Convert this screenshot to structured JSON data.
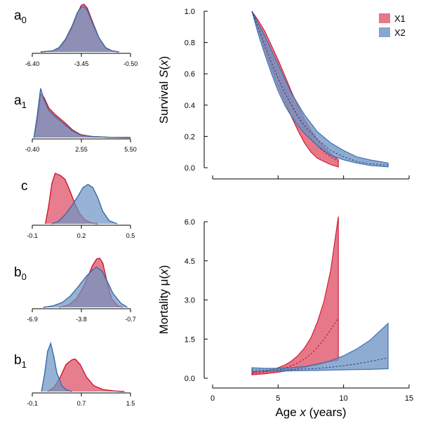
{
  "colors": {
    "x1_fill": "#e05a6e",
    "x1_line": "#d0142e",
    "x2_fill": "#6e94c4",
    "x2_line": "#3a6aa8"
  },
  "chart_data": [
    {
      "type": "area",
      "param": "a",
      "sub": "0",
      "xticks": [
        -6.4,
        -3.45,
        -0.5
      ],
      "xtick_labels": [
        "-6.40",
        "-3.45",
        "-0.50"
      ],
      "series": [
        {
          "name": "X1",
          "density": [
            [
              -5.9,
              0
            ],
            [
              -5.2,
              0.02
            ],
            [
              -4.8,
              0.08
            ],
            [
              -4.4,
              0.25
            ],
            [
              -4.0,
              0.52
            ],
            [
              -3.7,
              0.8
            ],
            [
              -3.45,
              0.98
            ],
            [
              -3.3,
              1.0
            ],
            [
              -3.1,
              0.92
            ],
            [
              -2.8,
              0.65
            ],
            [
              -2.4,
              0.3
            ],
            [
              -2.0,
              0.09
            ],
            [
              -1.6,
              0.02
            ],
            [
              -1.2,
              0
            ]
          ]
        },
        {
          "name": "X2",
          "density": [
            [
              -5.9,
              0
            ],
            [
              -5.2,
              0.02
            ],
            [
              -4.8,
              0.09
            ],
            [
              -4.4,
              0.27
            ],
            [
              -4.0,
              0.55
            ],
            [
              -3.7,
              0.82
            ],
            [
              -3.45,
              0.94
            ],
            [
              -3.3,
              0.95
            ],
            [
              -3.1,
              0.88
            ],
            [
              -2.8,
              0.62
            ],
            [
              -2.4,
              0.3
            ],
            [
              -2.0,
              0.09
            ],
            [
              -1.6,
              0.02
            ],
            [
              -1.2,
              0
            ]
          ]
        }
      ]
    },
    {
      "type": "area",
      "param": "a",
      "sub": "1",
      "xticks": [
        -0.4,
        2.55,
        5.5
      ],
      "xtick_labels": [
        "-0.40",
        "2.55",
        "5.50"
      ],
      "series": [
        {
          "name": "X1",
          "density": [
            [
              -0.3,
              0
            ],
            [
              -0.1,
              0.35
            ],
            [
              0.1,
              0.88
            ],
            [
              0.3,
              0.82
            ],
            [
              0.6,
              0.6
            ],
            [
              1.0,
              0.46
            ],
            [
              1.5,
              0.32
            ],
            [
              2.0,
              0.16
            ],
            [
              2.5,
              0.06
            ],
            [
              3.2,
              0.02
            ],
            [
              4.2,
              0.005
            ],
            [
              5.5,
              0
            ]
          ]
        },
        {
          "name": "X2",
          "density": [
            [
              -0.3,
              0
            ],
            [
              -0.1,
              0.45
            ],
            [
              0.1,
              1.0
            ],
            [
              0.3,
              0.78
            ],
            [
              0.6,
              0.55
            ],
            [
              1.0,
              0.42
            ],
            [
              1.5,
              0.28
            ],
            [
              2.0,
              0.14
            ],
            [
              2.5,
              0.05
            ],
            [
              3.2,
              0.02
            ],
            [
              4.2,
              0.005
            ],
            [
              5.5,
              0
            ]
          ]
        }
      ]
    },
    {
      "type": "area",
      "param": "c",
      "sub": "",
      "xticks": [
        -0.1,
        0.2,
        0.5
      ],
      "xtick_labels": [
        "-0.1",
        "0.2",
        "0.5"
      ],
      "series": [
        {
          "name": "X1",
          "density": [
            [
              -0.02,
              0
            ],
            [
              0.0,
              0.35
            ],
            [
              0.02,
              0.8
            ],
            [
              0.04,
              1.0
            ],
            [
              0.07,
              0.96
            ],
            [
              0.1,
              0.88
            ],
            [
              0.13,
              0.65
            ],
            [
              0.16,
              0.4
            ],
            [
              0.19,
              0.2
            ],
            [
              0.22,
              0.08
            ],
            [
              0.26,
              0.02
            ],
            [
              0.3,
              0
            ]
          ]
        },
        {
          "name": "X2",
          "density": [
            [
              0.02,
              0
            ],
            [
              0.06,
              0.05
            ],
            [
              0.1,
              0.18
            ],
            [
              0.14,
              0.35
            ],
            [
              0.18,
              0.55
            ],
            [
              0.21,
              0.72
            ],
            [
              0.24,
              0.78
            ],
            [
              0.27,
              0.72
            ],
            [
              0.3,
              0.52
            ],
            [
              0.33,
              0.25
            ],
            [
              0.37,
              0.06
            ],
            [
              0.42,
              0
            ]
          ]
        }
      ]
    },
    {
      "type": "area",
      "param": "b",
      "sub": "0",
      "xticks": [
        -6.9,
        -3.8,
        -0.7
      ],
      "xtick_labels": [
        "-6.9",
        "-3.8",
        "-0.7"
      ],
      "series": [
        {
          "name": "X1",
          "density": [
            [
              -5.2,
              0
            ],
            [
              -4.6,
              0.05
            ],
            [
              -4.1,
              0.18
            ],
            [
              -3.7,
              0.4
            ],
            [
              -3.4,
              0.62
            ],
            [
              -3.1,
              0.85
            ],
            [
              -2.85,
              0.98
            ],
            [
              -2.65,
              1.0
            ],
            [
              -2.45,
              0.9
            ],
            [
              -2.2,
              0.55
            ],
            [
              -1.9,
              0.18
            ],
            [
              -1.5,
              0.03
            ],
            [
              -1.2,
              0
            ]
          ]
        },
        {
          "name": "X2",
          "density": [
            [
              -6.2,
              0
            ],
            [
              -5.6,
              0.03
            ],
            [
              -5.0,
              0.1
            ],
            [
              -4.5,
              0.23
            ],
            [
              -4.0,
              0.42
            ],
            [
              -3.5,
              0.63
            ],
            [
              -3.1,
              0.76
            ],
            [
              -2.85,
              0.82
            ],
            [
              -2.5,
              0.74
            ],
            [
              -2.2,
              0.55
            ],
            [
              -1.8,
              0.28
            ],
            [
              -1.3,
              0.08
            ],
            [
              -0.9,
              0
            ]
          ]
        }
      ]
    },
    {
      "type": "area",
      "param": "b",
      "sub": "1",
      "xticks": [
        -0.1,
        0.7,
        1.5
      ],
      "xtick_labels": [
        "-0.1",
        "0.7",
        "1.5"
      ],
      "series": [
        {
          "name": "X1",
          "density": [
            [
              0.15,
              0
            ],
            [
              0.25,
              0.08
            ],
            [
              0.35,
              0.28
            ],
            [
              0.45,
              0.55
            ],
            [
              0.55,
              0.65
            ],
            [
              0.6,
              0.66
            ],
            [
              0.68,
              0.55
            ],
            [
              0.78,
              0.3
            ],
            [
              0.9,
              0.12
            ],
            [
              1.05,
              0.04
            ],
            [
              1.25,
              0.01
            ],
            [
              1.4,
              0
            ]
          ]
        },
        {
          "name": "X2",
          "density": [
            [
              0.05,
              0
            ],
            [
              0.1,
              0.35
            ],
            [
              0.15,
              0.82
            ],
            [
              0.2,
              0.98
            ],
            [
              0.25,
              0.72
            ],
            [
              0.3,
              0.38
            ],
            [
              0.38,
              0.12
            ],
            [
              0.46,
              0.03
            ],
            [
              0.55,
              0
            ]
          ]
        }
      ]
    },
    {
      "type": "area",
      "title": "",
      "ylabel": "Survival S(x)",
      "ylabel_main": "Survival",
      "ylabel_sym": "S",
      "ylabel_var": "x",
      "xlim": [
        0,
        15
      ],
      "ylim": [
        0,
        1
      ],
      "yticks": [
        0.0,
        0.2,
        0.4,
        0.6,
        0.8,
        1.0
      ],
      "ytick_labels": [
        "0.0",
        "0.2",
        "0.4",
        "0.6",
        "0.8",
        "1.0"
      ],
      "legend": "top-right",
      "series": [
        {
          "name": "X1",
          "x": [
            3.0,
            3.5,
            4.0,
            4.5,
            5.0,
            5.5,
            6.0,
            6.5,
            7.0,
            7.5,
            8.0,
            8.5,
            9.0,
            9.6
          ],
          "upper": [
            1.0,
            0.94,
            0.87,
            0.78,
            0.69,
            0.59,
            0.49,
            0.4,
            0.31,
            0.24,
            0.18,
            0.13,
            0.09,
            0.05
          ],
          "median": [
            1.0,
            0.91,
            0.81,
            0.71,
            0.61,
            0.51,
            0.42,
            0.33,
            0.25,
            0.19,
            0.14,
            0.1,
            0.07,
            0.04
          ],
          "lower": [
            1.0,
            0.88,
            0.75,
            0.63,
            0.52,
            0.42,
            0.33,
            0.24,
            0.16,
            0.1,
            0.06,
            0.04,
            0.02,
            0.005
          ]
        },
        {
          "name": "X2",
          "x": [
            3.0,
            3.5,
            4.0,
            4.5,
            5.0,
            5.5,
            6.0,
            6.5,
            7.0,
            8.0,
            9.0,
            10.0,
            11.0,
            12.0,
            13.4
          ],
          "upper": [
            1.0,
            0.92,
            0.84,
            0.75,
            0.66,
            0.57,
            0.48,
            0.41,
            0.34,
            0.23,
            0.16,
            0.11,
            0.07,
            0.05,
            0.03
          ],
          "median": [
            1.0,
            0.89,
            0.78,
            0.67,
            0.57,
            0.48,
            0.4,
            0.33,
            0.27,
            0.18,
            0.11,
            0.07,
            0.04,
            0.025,
            0.015
          ],
          "lower": [
            1.0,
            0.85,
            0.72,
            0.6,
            0.49,
            0.4,
            0.33,
            0.27,
            0.22,
            0.14,
            0.08,
            0.05,
            0.03,
            0.015,
            0.005
          ]
        }
      ]
    },
    {
      "type": "area",
      "title": "",
      "xlabel": "Age x (years)",
      "xlabel_main": "Age",
      "xlabel_var": "x",
      "xlabel_unit": "(years)",
      "ylabel": "Mortality μ(x)",
      "ylabel_main": "Mortality",
      "ylabel_sym": "μ",
      "ylabel_var": "x",
      "xlim": [
        0,
        15
      ],
      "ylim": [
        0,
        6
      ],
      "xticks": [
        0,
        5,
        10,
        15
      ],
      "xtick_labels": [
        "0",
        "5",
        "10",
        "15"
      ],
      "yticks": [
        0.0,
        1.5,
        3.0,
        4.5,
        6.0
      ],
      "ytick_labels": [
        "0.0",
        "1.5",
        "3.0",
        "4.5",
        "6.0"
      ],
      "series": [
        {
          "name": "X1",
          "x": [
            3.0,
            3.5,
            4.0,
            4.5,
            5.0,
            5.5,
            6.0,
            6.5,
            7.0,
            7.5,
            8.0,
            8.5,
            9.0,
            9.6
          ],
          "upper": [
            0.22,
            0.25,
            0.28,
            0.33,
            0.4,
            0.5,
            0.65,
            0.86,
            1.15,
            1.55,
            2.15,
            2.95,
            4.1,
            6.2
          ],
          "median": [
            0.17,
            0.2,
            0.23,
            0.27,
            0.32,
            0.38,
            0.47,
            0.58,
            0.73,
            0.92,
            1.18,
            1.5,
            1.85,
            2.3
          ],
          "lower": [
            0.13,
            0.15,
            0.17,
            0.2,
            0.23,
            0.27,
            0.31,
            0.36,
            0.41,
            0.47,
            0.52,
            0.58,
            0.64,
            0.7
          ]
        },
        {
          "name": "X2",
          "x": [
            3.0,
            4.0,
            5.0,
            6.0,
            7.0,
            8.0,
            9.0,
            10.0,
            11.0,
            12.0,
            13.4
          ],
          "upper": [
            0.4,
            0.38,
            0.38,
            0.4,
            0.45,
            0.54,
            0.67,
            0.86,
            1.12,
            1.45,
            2.1
          ],
          "median": [
            0.3,
            0.31,
            0.32,
            0.33,
            0.35,
            0.38,
            0.42,
            0.48,
            0.55,
            0.64,
            0.78
          ],
          "lower": [
            0.25,
            0.26,
            0.27,
            0.28,
            0.29,
            0.3,
            0.31,
            0.32,
            0.33,
            0.34,
            0.36
          ]
        }
      ]
    }
  ]
}
